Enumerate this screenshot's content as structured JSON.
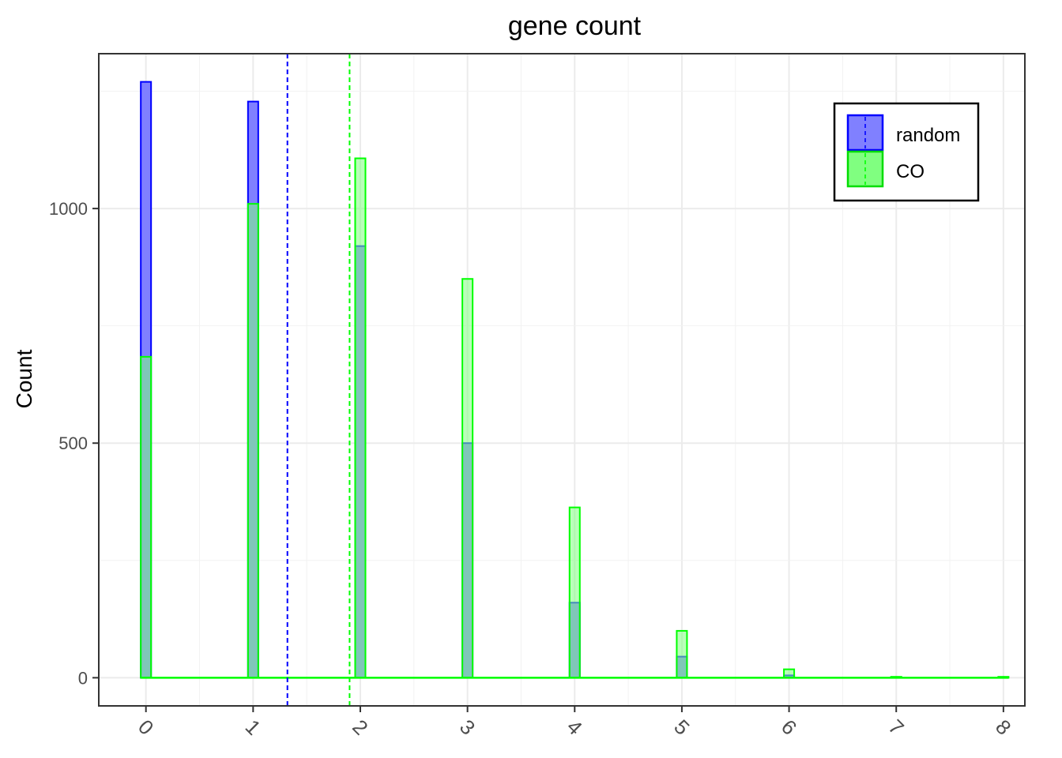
{
  "chart_data": {
    "type": "bar",
    "title": "gene count",
    "xlabel": "",
    "ylabel": "Count",
    "x_ticks": [
      "0",
      "1",
      "2",
      "3",
      "4",
      "5",
      "6",
      "7",
      "8"
    ],
    "y_ticks": [
      "0",
      "500",
      "1000"
    ],
    "ylim": [
      -60,
      1330
    ],
    "xlim": [
      -0.44,
      8.2
    ],
    "grid": true,
    "legend_position": "top-right",
    "series": [
      {
        "name": "random",
        "fill": "#8080ff",
        "stroke": "#0000ff",
        "x": [
          0,
          1,
          2,
          3,
          4,
          5,
          6,
          7,
          8
        ],
        "values": [
          1270,
          1228,
          920,
          500,
          160,
          45,
          5,
          1,
          0
        ],
        "mean": 1.32
      },
      {
        "name": "CO",
        "fill": "#80ff80",
        "stroke": "#00ff00",
        "x": [
          0,
          1,
          2,
          3,
          4,
          5,
          6,
          7,
          8
        ],
        "values": [
          684,
          1010,
          1107,
          850,
          363,
          100,
          18,
          2,
          2
        ],
        "mean": 1.9
      }
    ]
  }
}
